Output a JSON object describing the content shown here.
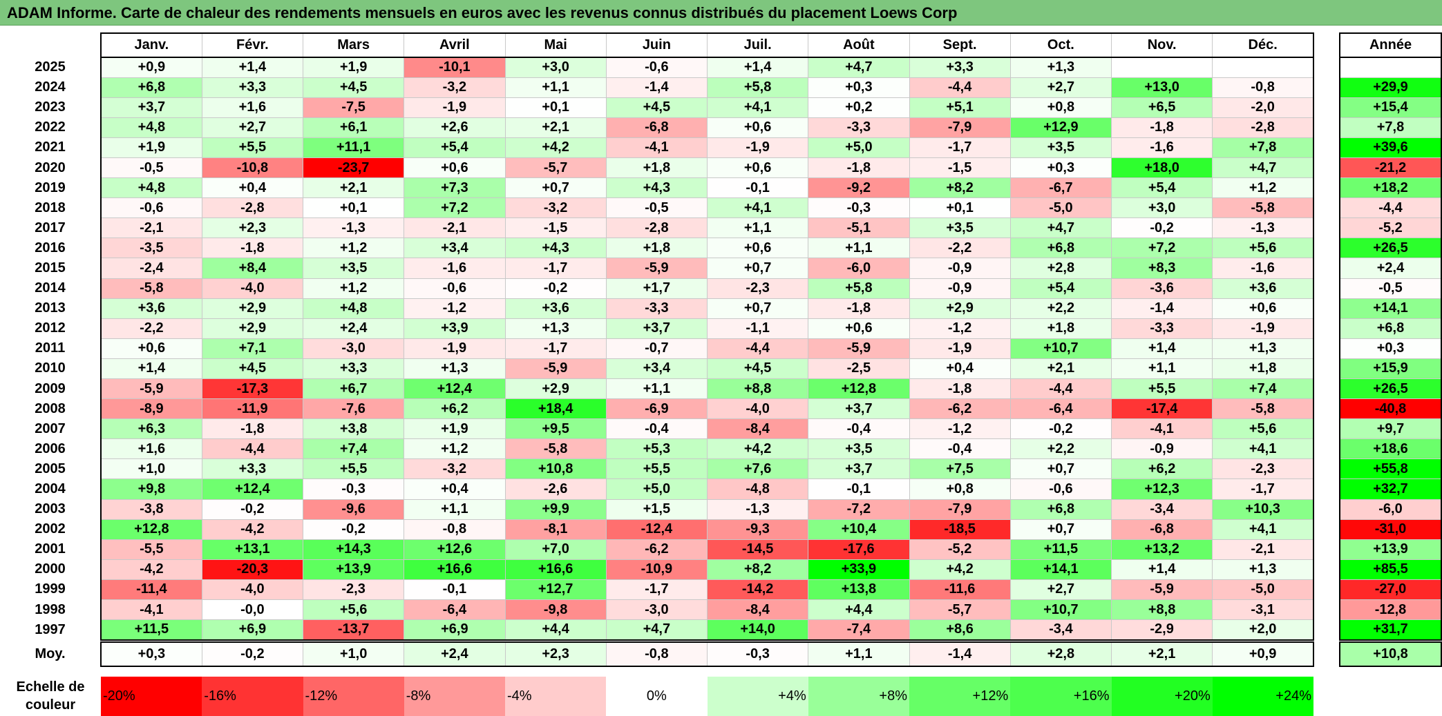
{
  "title": "ADAM Informe. Carte de chaleur des rendements mensuels en euros avec les revenus connus distribués du placement Loews Corp",
  "chart_data": {
    "type": "heatmap",
    "title": "ADAM Informe. Carte de chaleur des rendements mensuels en euros avec les revenus connus distribués du placement Loews Corp",
    "columns": [
      "Janv.",
      "Févr.",
      "Mars",
      "Avril",
      "Mai",
      "Juin",
      "Juil.",
      "Août",
      "Sept.",
      "Oct.",
      "Nov.",
      "Déc."
    ],
    "year_header": "Année",
    "avg_label": "Moy.",
    "rows": [
      {
        "year": "2025",
        "values": [
          "+0,9",
          "+1,4",
          "+1,9",
          "-10,1",
          "+3,0",
          "-0,6",
          "+1,4",
          "+4,7",
          "+3,3",
          "+1,3",
          "",
          ""
        ],
        "annual": ""
      },
      {
        "year": "2024",
        "values": [
          "+6,8",
          "+3,3",
          "+4,5",
          "-3,2",
          "+1,1",
          "-1,4",
          "+5,8",
          "+0,3",
          "-4,4",
          "+2,7",
          "+13,0",
          "-0,8"
        ],
        "annual": "+29,9"
      },
      {
        "year": "2023",
        "values": [
          "+3,7",
          "+1,6",
          "-7,5",
          "-1,9",
          "+0,1",
          "+4,5",
          "+4,1",
          "+0,2",
          "+5,1",
          "+0,8",
          "+6,5",
          "-2,0"
        ],
        "annual": "+15,4"
      },
      {
        "year": "2022",
        "values": [
          "+4,8",
          "+2,7",
          "+6,1",
          "+2,6",
          "+2,1",
          "-6,8",
          "+0,6",
          "-3,3",
          "-7,9",
          "+12,9",
          "-1,8",
          "-2,8"
        ],
        "annual": "+7,8"
      },
      {
        "year": "2021",
        "values": [
          "+1,9",
          "+5,5",
          "+11,1",
          "+5,4",
          "+4,2",
          "-4,1",
          "-1,9",
          "+5,0",
          "-1,7",
          "+3,5",
          "-1,6",
          "+7,8"
        ],
        "annual": "+39,6"
      },
      {
        "year": "2020",
        "values": [
          "-0,5",
          "-10,8",
          "-23,7",
          "+0,6",
          "-5,7",
          "+1,8",
          "+0,6",
          "-1,8",
          "-1,5",
          "+0,3",
          "+18,0",
          "+4,7"
        ],
        "annual": "-21,2"
      },
      {
        "year": "2019",
        "values": [
          "+4,8",
          "+0,4",
          "+2,1",
          "+7,3",
          "+0,7",
          "+4,3",
          "-0,1",
          "-9,2",
          "+8,2",
          "-6,7",
          "+5,4",
          "+1,2"
        ],
        "annual": "+18,2"
      },
      {
        "year": "2018",
        "values": [
          "-0,6",
          "-2,8",
          "+0,1",
          "+7,2",
          "-3,2",
          "-0,5",
          "+4,1",
          "-0,3",
          "+0,1",
          "-5,0",
          "+3,0",
          "-5,8"
        ],
        "annual": "-4,4"
      },
      {
        "year": "2017",
        "values": [
          "-2,1",
          "+2,3",
          "-1,3",
          "-2,1",
          "-1,5",
          "-2,8",
          "+1,1",
          "-5,1",
          "+3,5",
          "+4,7",
          "-0,2",
          "-1,3"
        ],
        "annual": "-5,2"
      },
      {
        "year": "2016",
        "values": [
          "-3,5",
          "-1,8",
          "+1,2",
          "+3,4",
          "+4,3",
          "+1,8",
          "+0,6",
          "+1,1",
          "-2,2",
          "+6,8",
          "+7,2",
          "+5,6"
        ],
        "annual": "+26,5"
      },
      {
        "year": "2015",
        "values": [
          "-2,4",
          "+8,4",
          "+3,5",
          "-1,6",
          "-1,7",
          "-5,9",
          "+0,7",
          "-6,0",
          "-0,9",
          "+2,8",
          "+8,3",
          "-1,6"
        ],
        "annual": "+2,4"
      },
      {
        "year": "2014",
        "values": [
          "-5,8",
          "-4,0",
          "+1,2",
          "-0,6",
          "-0,2",
          "+1,7",
          "-2,3",
          "+5,8",
          "-0,9",
          "+5,4",
          "-3,6",
          "+3,6"
        ],
        "annual": "-0,5"
      },
      {
        "year": "2013",
        "values": [
          "+3,6",
          "+2,9",
          "+4,8",
          "-1,2",
          "+3,6",
          "-3,3",
          "+0,7",
          "-1,8",
          "+2,9",
          "+2,2",
          "-1,4",
          "+0,6"
        ],
        "annual": "+14,1"
      },
      {
        "year": "2012",
        "values": [
          "-2,2",
          "+2,9",
          "+2,4",
          "+3,9",
          "+1,3",
          "+3,7",
          "-1,1",
          "+0,6",
          "-1,2",
          "+1,8",
          "-3,3",
          "-1,9"
        ],
        "annual": "+6,8"
      },
      {
        "year": "2011",
        "values": [
          "+0,6",
          "+7,1",
          "-3,0",
          "-1,9",
          "-1,7",
          "-0,7",
          "-4,4",
          "-5,9",
          "-1,9",
          "+10,7",
          "+1,4",
          "+1,3"
        ],
        "annual": "+0,3"
      },
      {
        "year": "2010",
        "values": [
          "+1,4",
          "+4,5",
          "+3,3",
          "+1,3",
          "-5,9",
          "+3,4",
          "+4,5",
          "-2,5",
          "+0,4",
          "+2,1",
          "+1,1",
          "+1,8"
        ],
        "annual": "+15,9"
      },
      {
        "year": "2009",
        "values": [
          "-5,9",
          "-17,3",
          "+6,7",
          "+12,4",
          "+2,9",
          "+1,1",
          "+8,8",
          "+12,8",
          "-1,8",
          "-4,4",
          "+5,5",
          "+7,4"
        ],
        "annual": "+26,5"
      },
      {
        "year": "2008",
        "values": [
          "-8,9",
          "-11,9",
          "-7,6",
          "+6,2",
          "+18,4",
          "-6,9",
          "-4,0",
          "+3,7",
          "-6,2",
          "-6,4",
          "-17,4",
          "-5,8"
        ],
        "annual": "-40,8"
      },
      {
        "year": "2007",
        "values": [
          "+6,3",
          "-1,8",
          "+3,8",
          "+1,9",
          "+9,5",
          "-0,4",
          "-8,4",
          "-0,4",
          "-1,2",
          "-0,2",
          "-4,1",
          "+5,6"
        ],
        "annual": "+9,7"
      },
      {
        "year": "2006",
        "values": [
          "+1,6",
          "-4,4",
          "+7,4",
          "+1,2",
          "-5,8",
          "+5,3",
          "+4,2",
          "+3,5",
          "-0,4",
          "+2,2",
          "-0,9",
          "+4,1"
        ],
        "annual": "+18,6"
      },
      {
        "year": "2005",
        "values": [
          "+1,0",
          "+3,3",
          "+5,5",
          "-3,2",
          "+10,8",
          "+5,5",
          "+7,6",
          "+3,7",
          "+7,5",
          "+0,7",
          "+6,2",
          "-2,3"
        ],
        "annual": "+55,8"
      },
      {
        "year": "2004",
        "values": [
          "+9,8",
          "+12,4",
          "-0,3",
          "+0,4",
          "-2,6",
          "+5,0",
          "-4,8",
          "-0,1",
          "+0,8",
          "-0,6",
          "+12,3",
          "-1,7"
        ],
        "annual": "+32,7"
      },
      {
        "year": "2003",
        "values": [
          "-3,8",
          "-0,2",
          "-9,6",
          "+1,1",
          "+9,9",
          "+1,5",
          "-1,3",
          "-7,2",
          "-7,9",
          "+6,8",
          "-3,4",
          "+10,3"
        ],
        "annual": "-6,0"
      },
      {
        "year": "2002",
        "values": [
          "+12,8",
          "-4,2",
          "-0,2",
          "-0,8",
          "-8,1",
          "-12,4",
          "-9,3",
          "+10,4",
          "-18,5",
          "+0,7",
          "-6,8",
          "+4,1"
        ],
        "annual": "-31,0"
      },
      {
        "year": "2001",
        "values": [
          "-5,5",
          "+13,1",
          "+14,3",
          "+12,6",
          "+7,0",
          "-6,2",
          "-14,5",
          "-17,6",
          "-5,2",
          "+11,5",
          "+13,2",
          "-2,1"
        ],
        "annual": "+13,9"
      },
      {
        "year": "2000",
        "values": [
          "-4,2",
          "-20,3",
          "+13,9",
          "+16,6",
          "+16,6",
          "-10,9",
          "+8,2",
          "+33,9",
          "+4,2",
          "+14,1",
          "+1,4",
          "+1,3"
        ],
        "annual": "+85,5"
      },
      {
        "year": "1999",
        "values": [
          "-11,4",
          "-4,0",
          "-2,3",
          "-0,1",
          "+12,7",
          "-1,7",
          "-14,2",
          "+13,8",
          "-11,6",
          "+2,7",
          "-5,9",
          "-5,0"
        ],
        "annual": "-27,0"
      },
      {
        "year": "1998",
        "values": [
          "-4,1",
          "-0,0",
          "+5,6",
          "-6,4",
          "-9,8",
          "-3,0",
          "-8,4",
          "+4,4",
          "-5,7",
          "+10,7",
          "+8,8",
          "-3,1"
        ],
        "annual": "-12,8"
      },
      {
        "year": "1997",
        "values": [
          "+11,5",
          "+6,9",
          "-13,7",
          "+6,9",
          "+4,4",
          "+4,7",
          "+14,0",
          "-7,4",
          "+8,6",
          "-3,4",
          "-2,9",
          "+2,0"
        ],
        "annual": "+31,7"
      }
    ],
    "averages": [
      "+0,3",
      "-0,2",
      "+1,0",
      "+2,4",
      "+2,3",
      "-0,8",
      "-0,3",
      "+1,1",
      "-1,4",
      "+2,8",
      "+2,1",
      "+0,9"
    ],
    "avg_annual": "+10,8",
    "scale": {
      "label_line1": "Echelle de",
      "label_line2": "couleur",
      "steps": [
        {
          "label": "-20%",
          "color": "#ff0000"
        },
        {
          "label": "-16%",
          "color": "#ff3333"
        },
        {
          "label": "-12%",
          "color": "#ff6666"
        },
        {
          "label": "-8%",
          "color": "#ff9999"
        },
        {
          "label": "-4%",
          "color": "#ffcccc"
        },
        {
          "label": "0%",
          "color": "#ffffff"
        },
        {
          "label": "+4%",
          "color": "#ccffcc"
        },
        {
          "label": "+8%",
          "color": "#99ff99"
        },
        {
          "label": "+12%",
          "color": "#66ff66"
        },
        {
          "label": "+16%",
          "color": "#4dff4d"
        },
        {
          "label": "+20%",
          "color": "#22ff22"
        },
        {
          "label": "+24%",
          "color": "#00ff00"
        }
      ]
    }
  }
}
